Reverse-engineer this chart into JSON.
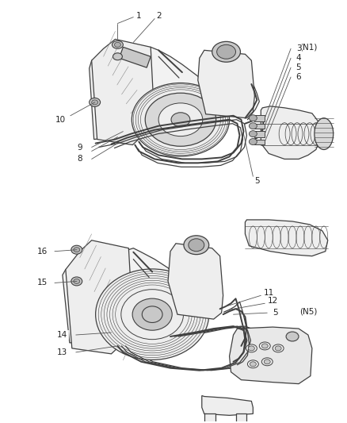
{
  "background_color": "#ffffff",
  "line_color": "#404040",
  "label_color": "#222222",
  "fig_width": 4.39,
  "fig_height": 5.33,
  "dpi": 100,
  "font_size": 7.5
}
